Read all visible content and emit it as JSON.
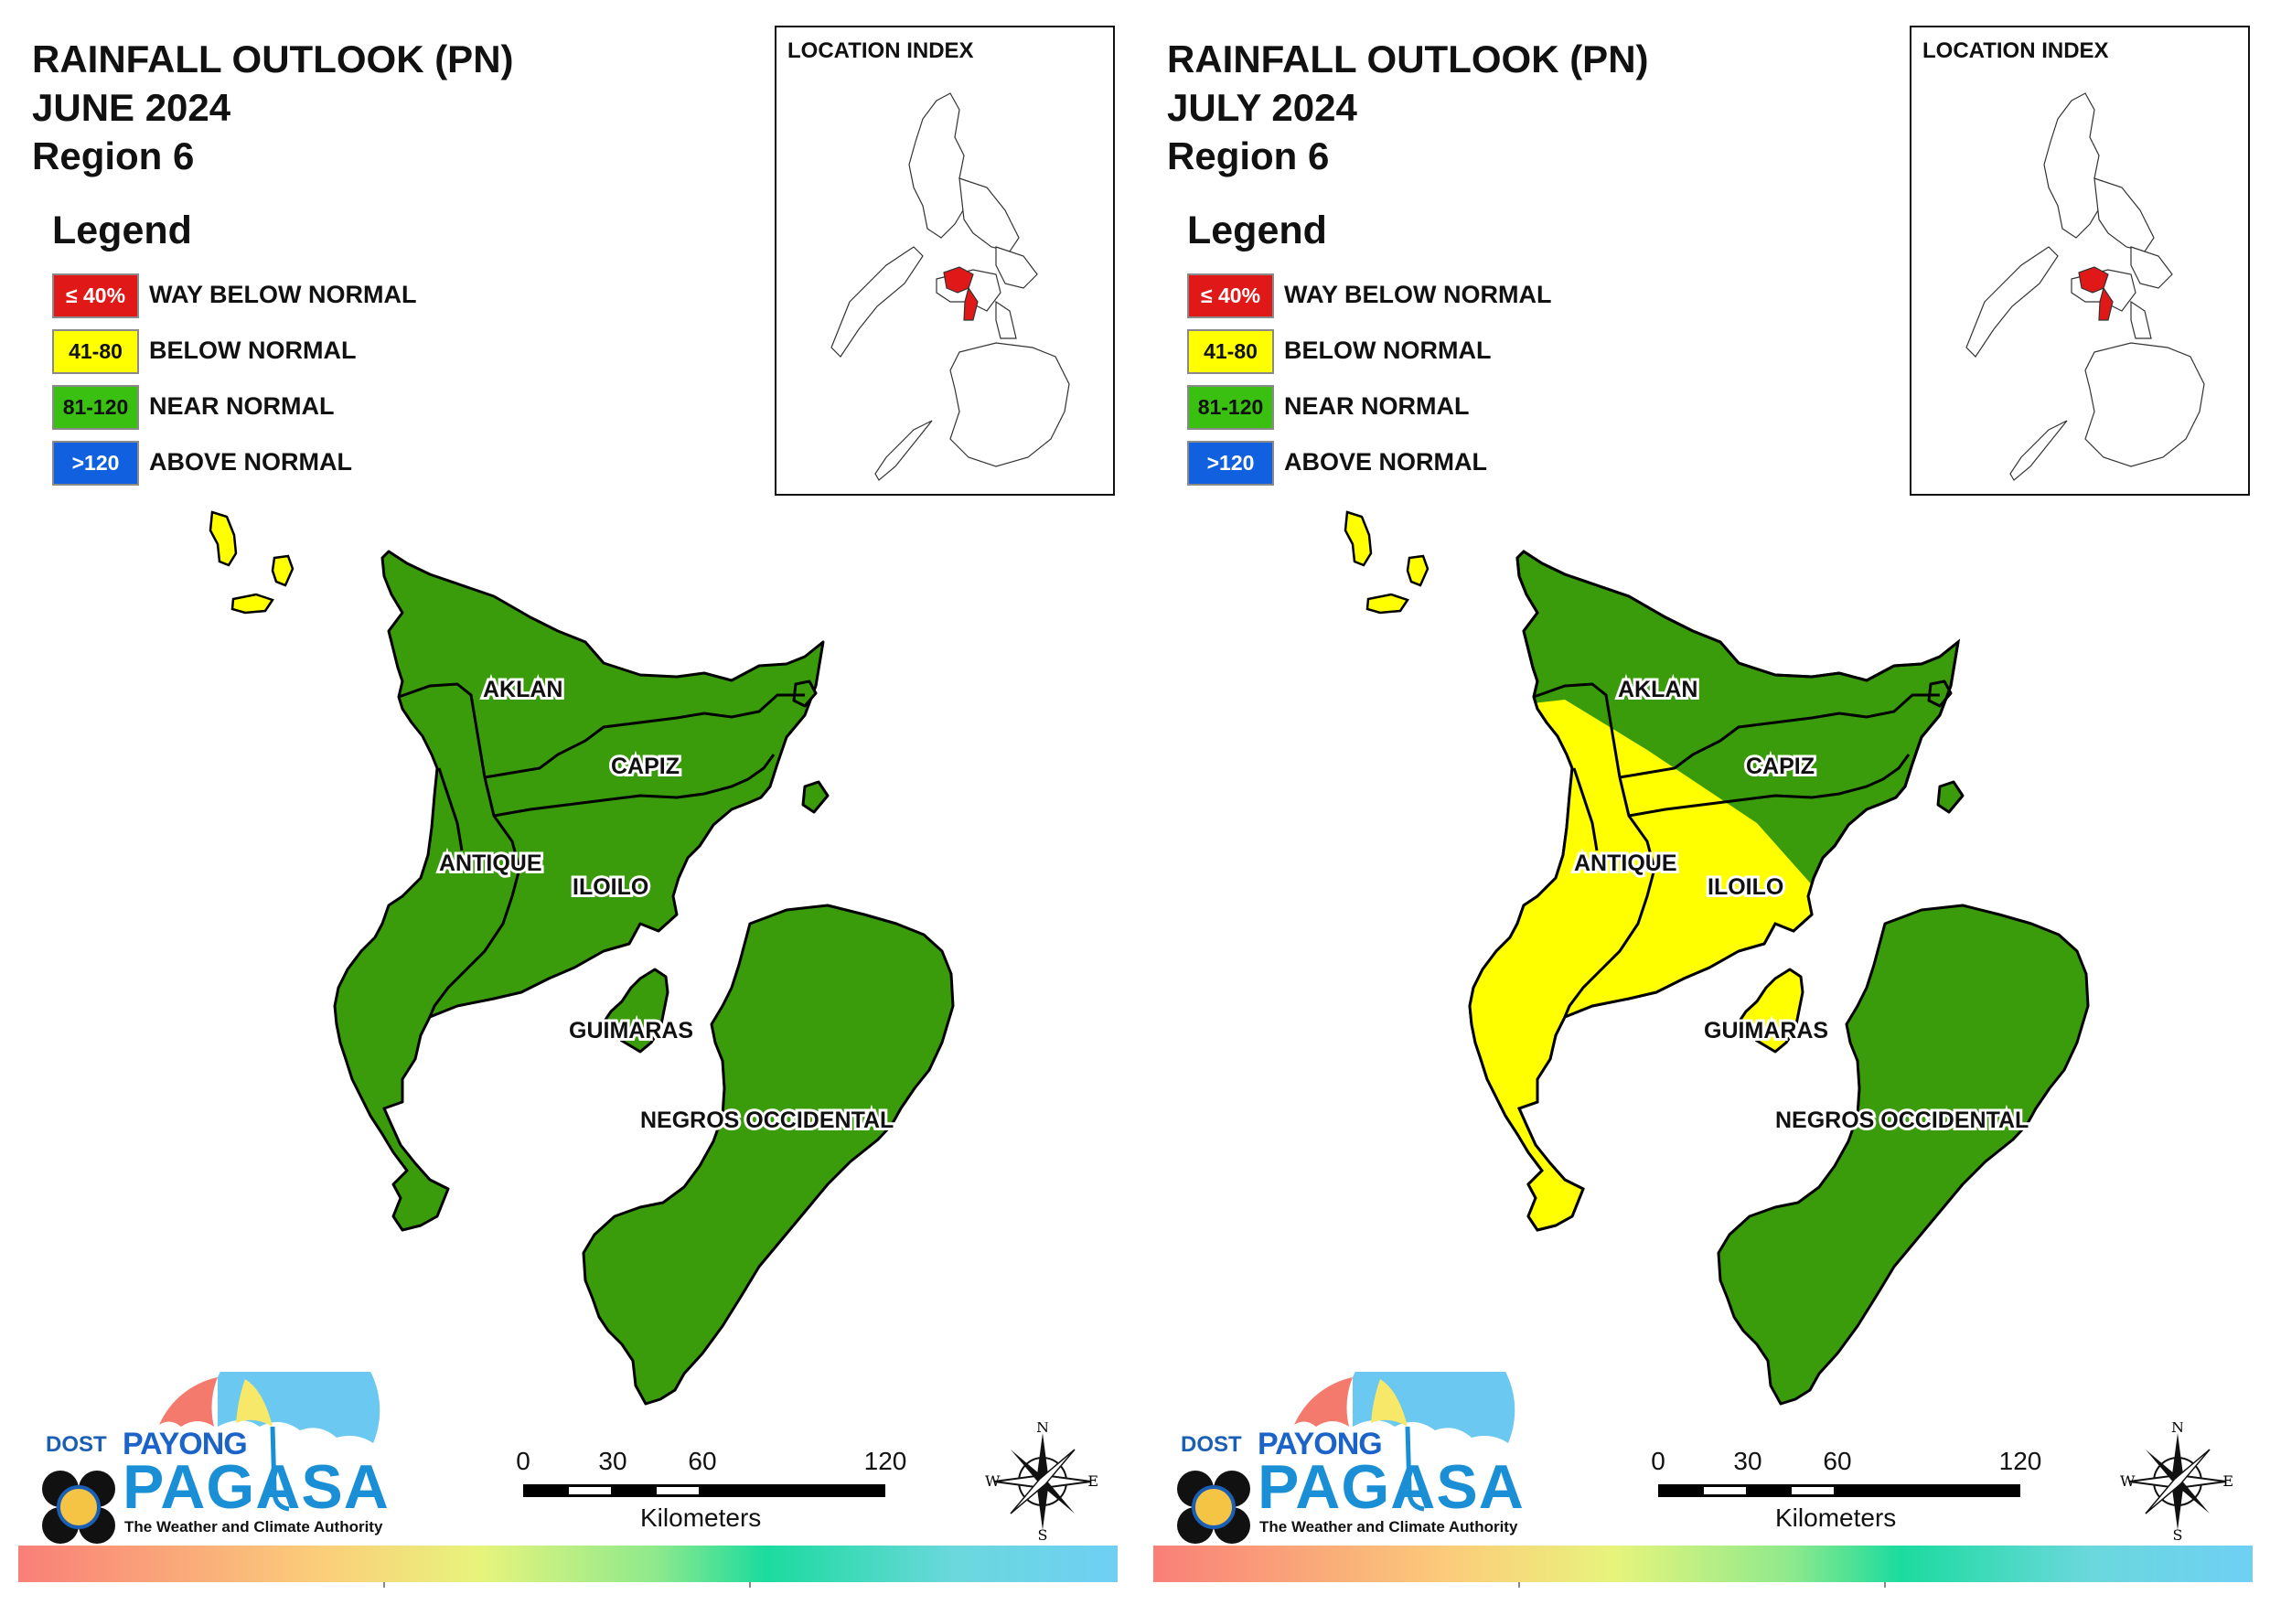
{
  "colors": {
    "way_below": "#e01818",
    "below": "#ffff00",
    "near": "#3a9c0a",
    "above": "#1060e0",
    "boundary": "#000000",
    "panel_bg": "#ffffff"
  },
  "legend": {
    "title": "Legend",
    "items": [
      {
        "range": "≤ 40%",
        "label": "WAY BELOW NORMAL",
        "color": "#e01818",
        "text_color": "#ffffff"
      },
      {
        "range": "41-80",
        "label": "BELOW NORMAL",
        "color": "#ffff00",
        "text_color": "#111111"
      },
      {
        "range": "81-120",
        "label": "NEAR NORMAL",
        "color": "#3ac010",
        "text_color": "#111111"
      },
      {
        "range": ">120",
        "label": "ABOVE NORMAL",
        "color": "#1060e0",
        "text_color": "#ffffff"
      }
    ]
  },
  "location_index": {
    "title": "LOCATION INDEX",
    "highlight_color": "#e01818"
  },
  "provinces": [
    "AKLAN",
    "CAPIZ",
    "ANTIQUE",
    "ILOILO",
    "GUIMARAS",
    "NEGROS OCCIDENTAL"
  ],
  "panels": [
    {
      "title_line1": "RAINFALL OUTLOOK (PN)",
      "title_line2": "JUNE 2024",
      "title_line3": "Region 6",
      "categories": {
        "AKLAN": "NEAR NORMAL",
        "CAPIZ": "NEAR NORMAL",
        "ANTIQUE": "NEAR NORMAL",
        "ILOILO": "NEAR NORMAL",
        "GUIMARAS": "NEAR NORMAL",
        "NEGROS OCCIDENTAL": "NEAR NORMAL",
        "Northern islets": "BELOW NORMAL"
      }
    },
    {
      "title_line1": "RAINFALL OUTLOOK (PN)",
      "title_line2": "JULY 2024",
      "title_line3": "Region 6",
      "categories": {
        "AKLAN": "NEAR NORMAL",
        "CAPIZ": "NEAR NORMAL",
        "ANTIQUE": "BELOW NORMAL",
        "ILOILO": "BELOW NORMAL (west) / NEAR NORMAL (east)",
        "GUIMARAS": "BELOW NORMAL",
        "NEGROS OCCIDENTAL": "NEAR NORMAL",
        "Northern islets": "BELOW NORMAL"
      }
    }
  ],
  "scale": {
    "ticks": [
      "0",
      "30",
      "60",
      "120"
    ],
    "units": "Kilometers"
  },
  "compass": {
    "n": "N",
    "s": "S",
    "e": "E",
    "w": "W"
  },
  "logo": {
    "dost": "DOST",
    "payong": "PAYONG",
    "pagasa": "PAGASA",
    "tagline": "The Weather and Climate Authority"
  }
}
